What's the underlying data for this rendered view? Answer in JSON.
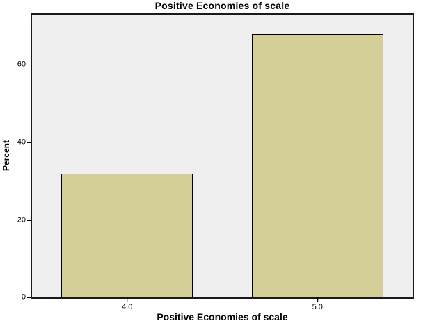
{
  "figure": {
    "title": "Positive Economies of scale"
  },
  "chart_data": {
    "type": "bar",
    "title": "Positive Economies of scale",
    "xlabel": "Positive Economies of scale",
    "ylabel": "Percent",
    "categories": [
      "4.0",
      "5.0"
    ],
    "values": [
      32,
      68
    ],
    "ylim": [
      0,
      73
    ],
    "yticks": [
      0,
      20,
      40,
      60
    ],
    "grid": false,
    "legend_position": "none",
    "colors": {
      "bar_fill": "#d3cf97",
      "bar_border": "#000000",
      "plot_background": "#efefef",
      "axis": "#1a1a1a",
      "text": "#000000",
      "page_background": "#ffffff"
    }
  }
}
